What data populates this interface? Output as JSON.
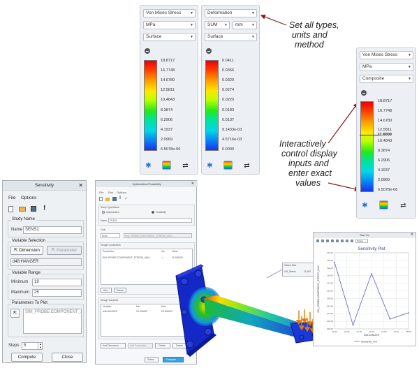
{
  "annotations": {
    "top_lines": [
      "Set all types,",
      "units and",
      "method"
    ],
    "bottom_lines": [
      "Interactively",
      "control display",
      "inputs and",
      "enter exact",
      "values"
    ]
  },
  "legend_stress": {
    "type": "Von Mises Stress",
    "unit": "MPa",
    "method": "Surface",
    "labels": [
      "18.8717",
      "16.7748",
      "14.6780",
      "12.5811",
      "10.4843",
      "8.3874",
      "6.2906",
      "4.1937",
      "2.0969",
      "6.5078e-06"
    ]
  },
  "legend_deform": {
    "type": "Deformation",
    "component": "SUM",
    "unit": "mm",
    "method": "Surface",
    "labels": [
      "0.0411",
      "0.0366",
      "0.0320",
      "0.0274",
      "0.0229",
      "0.0183",
      "0.0137",
      "9.1433e-03",
      "4.5716e-03",
      "0.0000"
    ]
  },
  "legend_comp": {
    "type": "Von Mises Stress",
    "unit": "MPa",
    "method": "Composite",
    "marker_value": "11.6000",
    "labels": [
      "18.8717",
      "16.7748",
      "14.6780",
      "12.5811",
      "10.4843",
      "8.3874",
      "6.2906",
      "4.1937",
      "2.0969",
      "6.5078e-06"
    ]
  },
  "sensitivity": {
    "title": "Sensitivity",
    "menu": [
      "File",
      "Options"
    ],
    "study_name_label": "Study Name",
    "name_label": "Name",
    "name_value": "SENS1",
    "variable_selection_label": "Variable Selection",
    "dimension_btn": "Dimension",
    "parameter_btn": "Parameter",
    "variable_value": "d48:HANGER",
    "variable_range_label": "Variable Range",
    "minimum_label": "Minimum",
    "minimum_value": "19",
    "maximum_label": "Maximum",
    "maximum_value": "25",
    "parameters_to_plot_label": "Parameters To Plot",
    "parameter_value": "SIM_PROBE:COMPONENT_...",
    "steps_label": "Steps",
    "steps_value": "5",
    "compute_btn": "Compute",
    "close_btn": "Close"
  },
  "optimization": {
    "title": "Optimization/Feasibility",
    "menu": [
      "File",
      "Run",
      "Options"
    ],
    "study_type_label": "Study Type/Name",
    "opt_label": "Optimization",
    "feas_label": "Feasibility",
    "name_label": "Name",
    "name_value": "FEAS1",
    "goal_label": "Goal",
    "goal_value": "None",
    "goal_param": "SIM_PROBE:COMPONENT_STRESS_MAX...",
    "constraints_label": "Design Constraints",
    "col_parameter": "Parameter",
    "col_op": "Op",
    "col_value": "Value",
    "constraint_param": "SIM_PROBE:COMPONENT_STRESS_MAX...",
    "constraint_op": "<",
    "constraint_value": "11.600000",
    "add_btn": "Add...",
    "delete_btn": "Delete",
    "variables_label": "Design Variables",
    "col_variable": "Variable",
    "col_min": "Min",
    "col_max": "Max",
    "var_name": "d48:HANGER",
    "var_min": "19.000000",
    "var_max": "25.000000",
    "add_dim_btn": "Add Dimension...",
    "add_param_btn": "Add Parameter...",
    "delete2_btn": "Delete",
    "delete3_btn": "Delete",
    "status_btn": "Status",
    "compute_btn": "Compute"
  },
  "callout": {
    "title": "Global Max",
    "param": "VM_Stress",
    "value": "11.600"
  },
  "plot_window": {
    "window_title": "Start Pol",
    "plot_title": "Sensitivity Plot",
    "combo": "Strong",
    "legend": "Sensitivity_Plot"
  },
  "chart_data": {
    "type": "line",
    "title": "Sensitivity Plot",
    "xlabel": "d48:HANGER",
    "ylabel": "SIM_PROBE:COMPONENT_STRESS_MAX",
    "x_ticks": [
      "19.00",
      "20.00",
      "21.00",
      "22.00",
      "23.00",
      "24.00",
      "25.00"
    ],
    "y_ticks": [
      "100.00",
      "102.00",
      "104.00",
      "106.00",
      "108.00",
      "110.00",
      "112.00",
      "114.00",
      "116.00",
      "118.00",
      "120.00"
    ],
    "ylim": [
      100,
      120
    ],
    "xlim": [
      19,
      25
    ],
    "series": [
      {
        "name": "Sensitivity_Plot",
        "x": [
          19,
          20.5,
          22,
          23.5,
          25
        ],
        "y": [
          117.5,
          101.0,
          114.5,
          102.6,
          104.2
        ]
      }
    ],
    "color": "#6a6ad8"
  }
}
